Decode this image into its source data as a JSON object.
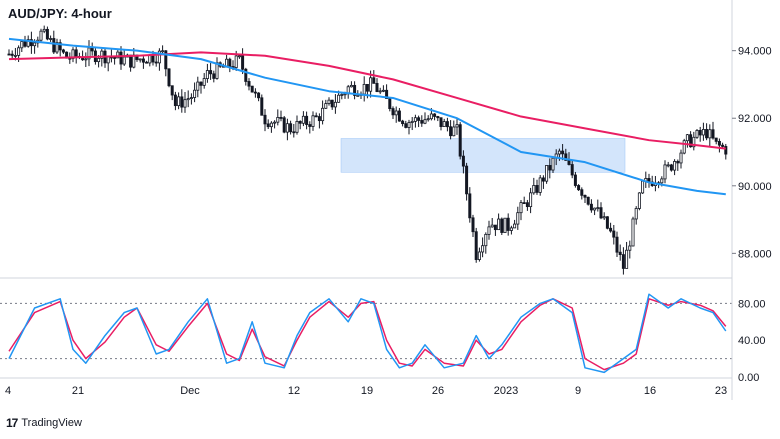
{
  "header": {
    "title": "AUD/JPY: 4-hour"
  },
  "branding": {
    "text": "TradingView",
    "logo_icon": "tradingview-logo-icon"
  },
  "colors": {
    "ma_fast": "#e91e63",
    "ma_slow": "#2196f3",
    "candle": "#131722",
    "zone_fill": "#cfe3fb",
    "zone_stroke": "#90bef5",
    "stoch_k": "#2196f3",
    "stoch_d": "#e91e63",
    "grid": "#d1d4dc"
  },
  "chart_data": [
    {
      "type": "candlestick",
      "title": "AUD/JPY: 4-hour",
      "x_ticks": [
        "4",
        "21",
        "Dec",
        "12",
        "19",
        "26",
        "2023",
        "9",
        "16",
        "23"
      ],
      "y_ticks": [
        "94.000",
        "92.000",
        "90.000",
        "88.000"
      ],
      "ylim": [
        87.3,
        95.5
      ],
      "grid": false,
      "resistance_zone": {
        "low": 90.4,
        "high": 91.4
      },
      "path_anchors": {
        "x_index": [
          0,
          4,
          10,
          18,
          28,
          38,
          48,
          52,
          58,
          62,
          72,
          80,
          88,
          96,
          106,
          110,
          114,
          118,
          124,
          132,
          140,
          146,
          150,
          156,
          164,
          172,
          178,
          184,
          188,
          192,
          198,
          206,
          212,
          218,
          221,
          224
        ],
        "close": [
          93.9,
          94.2,
          94.5,
          93.8,
          93.9,
          93.7,
          93.9,
          92.4,
          92.7,
          93.3,
          93.7,
          92.0,
          91.7,
          92.0,
          92.9,
          92.9,
          93.0,
          92.5,
          91.9,
          92.0,
          91.6,
          88.0,
          88.9,
          88.8,
          89.8,
          91.0,
          90.0,
          89.2,
          88.6,
          87.6,
          90.0,
          90.5,
          91.3,
          91.6,
          91.2,
          91.1
        ]
      },
      "series": [
        {
          "name": "",
          "role": "moving-average-fast",
          "x_index": [
            0,
            20,
            40,
            60,
            80,
            100,
            120,
            140,
            160,
            180,
            200,
            215,
            224
          ],
          "values": [
            93.75,
            93.8,
            93.85,
            93.95,
            93.85,
            93.55,
            93.15,
            92.6,
            92.05,
            91.7,
            91.35,
            91.2,
            91.1
          ]
        },
        {
          "name": "",
          "role": "moving-average-slow",
          "x_index": [
            0,
            20,
            40,
            60,
            80,
            100,
            120,
            140,
            160,
            180,
            200,
            215,
            224
          ],
          "values": [
            94.35,
            94.15,
            94.0,
            93.75,
            93.2,
            92.8,
            92.6,
            92.0,
            91.0,
            90.7,
            90.1,
            89.85,
            89.75
          ]
        }
      ]
    },
    {
      "type": "line",
      "role": "stochastic-oscillator",
      "y_ticks": [
        "80.00",
        "40.00",
        "0.00"
      ],
      "ylim": [
        0,
        100
      ],
      "reference_lines": [
        80,
        20
      ],
      "series": [
        {
          "name": "",
          "role": "k",
          "x_index": [
            0,
            8,
            16,
            20,
            24,
            30,
            36,
            40,
            46,
            50,
            56,
            62,
            68,
            72,
            76,
            80,
            86,
            90,
            94,
            100,
            106,
            110,
            114,
            118,
            122,
            126,
            130,
            136,
            142,
            146,
            150,
            154,
            160,
            166,
            170,
            176,
            180,
            186,
            192,
            196,
            200,
            206,
            210,
            216,
            220,
            224
          ],
          "values": [
            20,
            75,
            85,
            30,
            15,
            45,
            70,
            75,
            25,
            30,
            60,
            85,
            15,
            20,
            60,
            15,
            10,
            45,
            70,
            85,
            60,
            85,
            80,
            30,
            10,
            15,
            35,
            10,
            15,
            45,
            20,
            35,
            65,
            80,
            85,
            70,
            10,
            5,
            20,
            30,
            90,
            75,
            85,
            75,
            70,
            50
          ]
        },
        {
          "name": "",
          "role": "d",
          "x_index": [
            0,
            8,
            16,
            20,
            24,
            30,
            36,
            40,
            46,
            50,
            56,
            62,
            68,
            72,
            76,
            80,
            86,
            90,
            94,
            100,
            106,
            110,
            114,
            118,
            122,
            126,
            130,
            136,
            142,
            146,
            150,
            154,
            160,
            166,
            170,
            176,
            180,
            186,
            192,
            196,
            200,
            206,
            210,
            216,
            220,
            224
          ],
          "values": [
            28,
            70,
            82,
            40,
            20,
            38,
            65,
            75,
            35,
            28,
            55,
            80,
            25,
            18,
            52,
            22,
            12,
            40,
            65,
            82,
            65,
            80,
            82,
            40,
            15,
            12,
            30,
            15,
            12,
            40,
            25,
            30,
            60,
            78,
            85,
            75,
            20,
            8,
            15,
            25,
            85,
            78,
            82,
            78,
            72,
            55
          ]
        }
      ]
    }
  ]
}
